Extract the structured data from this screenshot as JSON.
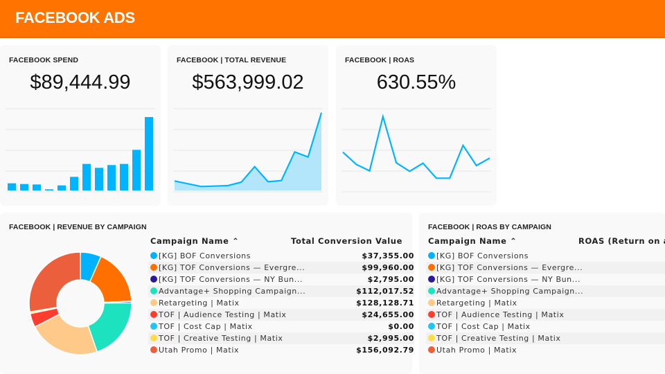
{
  "header": {
    "title": "FACEBOOK ADS",
    "color": "#ff7400"
  },
  "kpis": [
    {
      "title": "FACEBOOK SPEND",
      "value": "$89,444.99",
      "chart": {
        "type": "bar",
        "values": [
          31,
          28,
          26,
          5,
          22,
          59,
          115,
          98,
          110,
          115,
          176,
          318
        ]
      }
    },
    {
      "title": "FACEBOOK | TOTAL REVENUE",
      "value": "$563,999.02",
      "chart": {
        "type": "area",
        "values": [
          41,
          29,
          17,
          19,
          21,
          36,
          103,
          38,
          43,
          167,
          145,
          337
        ]
      }
    },
    {
      "title": "FACEBOOK | ROAS",
      "value": "630.55%",
      "chart": {
        "type": "line",
        "values": [
          166,
          113,
          85,
          320,
          120,
          83,
          118,
          53,
          53,
          195,
          108,
          140
        ]
      }
    }
  ],
  "revenue_by_campaign": {
    "title": "FACEBOOK | REVENUE BY CAMPAIGN",
    "columns": [
      "Campaign Name",
      "Total Conversion Value"
    ],
    "sort_icon": "chevron-up-icon",
    "rows": [
      {
        "name": "[KG] BOF Conversions",
        "value": "$37,355.00",
        "amount": 37355,
        "color": "#00b2ff"
      },
      {
        "name": "[KG] TOF Conversions — Evergre...",
        "value": "$99,960.00",
        "amount": 99960,
        "color": "#ff7000"
      },
      {
        "name": "[KG] TOF Conversions — NY Bun...",
        "value": "$2,795.00",
        "amount": 2795,
        "color": "#2a1a9a"
      },
      {
        "name": "Advantage+ Shopping Campaign...",
        "value": "$112,017.52",
        "amount": 112017.52,
        "color": "#1de2c0"
      },
      {
        "name": "Retargeting | Matix",
        "value": "$128,128.71",
        "amount": 128128.71,
        "color": "#ffc98a"
      },
      {
        "name": "TOF | Audience Testing | Matix",
        "value": "$24,655.00",
        "amount": 24655,
        "color": "#ff3d2e"
      },
      {
        "name": "TOF | Cost Cap | Matix",
        "value": "$0.00",
        "amount": 0,
        "color": "#22c4f5"
      },
      {
        "name": "TOF | Creative Testing | Matix",
        "value": "$2,995.00",
        "amount": 2995,
        "color": "#ffdc4a"
      },
      {
        "name": "Utah Promo | Matix",
        "value": "$156,092.79",
        "amount": 156092.79,
        "color": "#ec5f3c"
      }
    ]
  },
  "roas_by_campaign": {
    "title": "FACEBOOK | ROAS BY CAMPAIGN",
    "columns": [
      "Campaign Name",
      "ROAS (Return on ad"
    ],
    "rows": [
      {
        "name": "[KG] BOF Conversions",
        "color": "#00b2ff"
      },
      {
        "name": "[KG] TOF Conversions — Evergre...",
        "color": "#ff7000"
      },
      {
        "name": "[KG] TOF Conversions — NY Bun...",
        "color": "#2a1a9a"
      },
      {
        "name": "Advantage+ Shopping Campaign...",
        "color": "#1de2c0"
      },
      {
        "name": "Retargeting | Matix",
        "color": "#ffc98a"
      },
      {
        "name": "TOF | Audience Testing | Matix",
        "color": "#ff3d2e"
      },
      {
        "name": "TOF | Cost Cap | Matix",
        "color": "#22c4f5"
      },
      {
        "name": "TOF | Creative Testing | Matix",
        "color": "#ffdc4a"
      },
      {
        "name": "Utah Promo | Matix",
        "color": "#ec5f3c"
      }
    ]
  },
  "accent": "#00b4ff"
}
